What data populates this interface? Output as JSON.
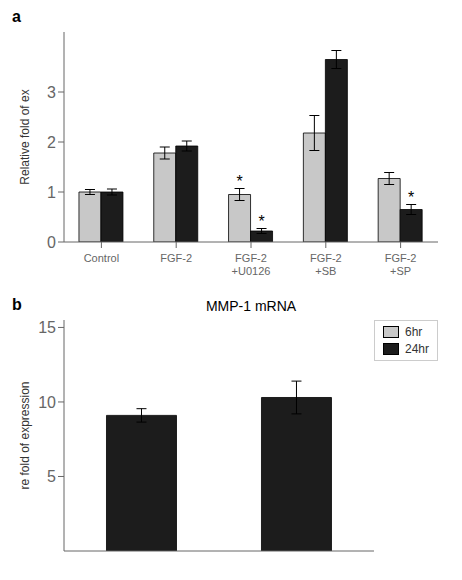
{
  "chart_data": [
    {
      "type": "bar",
      "categories": [
        "Control",
        "FGF-2",
        "FGF-2\n+U0126",
        "FGF-2\n+SB",
        "FGF-2\n+SP"
      ],
      "series": [
        {
          "color": "#c8c8c8",
          "values": [
            1.0,
            1.78,
            0.95,
            2.18,
            1.27
          ],
          "errors": [
            0.05,
            0.12,
            0.12,
            0.35,
            0.12
          ],
          "annotations": [
            {
              "category": "FGF-2\n+U0126",
              "text": "*"
            }
          ]
        },
        {
          "color": "#1c1c1c",
          "values": [
            1.0,
            1.92,
            0.22,
            3.65,
            0.65
          ],
          "errors": [
            0.06,
            0.1,
            0.05,
            0.18,
            0.1
          ],
          "annotations": [
            {
              "category": "FGF-2\n+U0126",
              "text": "*"
            },
            {
              "category": "FGF-2\n+SP",
              "text": "*"
            }
          ]
        }
      ],
      "ylabel": "Relative fold of ex",
      "ylim": [
        0,
        4.2
      ],
      "yticks": [
        0,
        1,
        2,
        3
      ],
      "annotations": [
        {
          "text": "a"
        }
      ]
    },
    {
      "type": "bar",
      "title": "MMP-1 mRNA",
      "categories": [
        null,
        null
      ],
      "series": [
        {
          "name": "6hr",
          "color": "#c8c8c8",
          "values": [
            null,
            null
          ]
        },
        {
          "name": "24hr",
          "color": "#1c1c1c",
          "values": [
            9.1,
            10.3
          ],
          "errors": [
            0.45,
            1.1
          ]
        }
      ],
      "ylabel": "re fold of expression",
      "ylim": [
        0,
        15.5
      ],
      "yticks": [
        5,
        10,
        15
      ],
      "legend": "upper right",
      "tick_labels": "y",
      "annotations": [
        {
          "text": "b"
        }
      ]
    }
  ]
}
